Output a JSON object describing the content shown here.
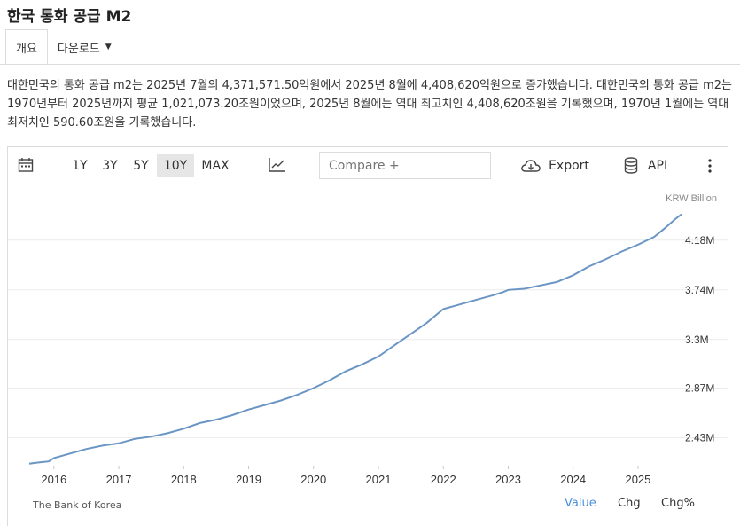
{
  "page": {
    "title": "한국 통화 공급 M2"
  },
  "tabs": [
    {
      "label": "개요",
      "active": true
    },
    {
      "label": "다운로드",
      "active": false
    }
  ],
  "summary": "대한민국의 통화 공급 m2는 2025년 7월의 4,371,571.50억원에서 2025년 8월에 4,408,620억원으로 증가했습니다. 대한민국의 통화 공급 m2는 1970년부터 2025년까지 평균 1,021,073.20조원이었으며, 2025년 8월에는 역대 최고치인 4,408,620조원을 기록했으며, 1970년 1월에는 역대 최저치인 590.60조원을 기록했습니다.",
  "toolbar": {
    "icons": [
      "calendar-icon",
      "line-chart-icon",
      "cloud-download-icon",
      "database-icon",
      "more-vertical-icon"
    ],
    "ranges": [
      {
        "label": "1Y",
        "selected": false
      },
      {
        "label": "3Y",
        "selected": false
      },
      {
        "label": "5Y",
        "selected": false
      },
      {
        "label": "10Y",
        "selected": true
      },
      {
        "label": "MAX",
        "selected": false
      }
    ],
    "compare_placeholder": "Compare +",
    "export_label": "Export",
    "api_label": "API"
  },
  "chart_data": {
    "type": "line",
    "unit_label": "KRW Billion",
    "x_tick_labels": [
      "2016",
      "2017",
      "2018",
      "2019",
      "2020",
      "2021",
      "2022",
      "2023",
      "2024",
      "2025"
    ],
    "y_tick_labels": [
      "2.43M",
      "2.87M",
      "3.3M",
      "3.74M",
      "4.18M"
    ],
    "y_ticks": [
      2430000,
      2870000,
      3300000,
      3740000,
      4180000
    ],
    "ylim": [
      2190000,
      4430000
    ],
    "xlim": [
      2015.62,
      2025.67
    ],
    "y_axis_position": "right",
    "grid": "horizontal",
    "line_color": "#6a95c4",
    "series": [
      {
        "x": [
          2015.62,
          2015.75,
          2015.92,
          2016.0,
          2016.25,
          2016.5,
          2016.75,
          2017.0,
          2017.25,
          2017.5,
          2017.75,
          2018.0,
          2018.25,
          2018.5,
          2018.75,
          2019.0,
          2019.25,
          2019.5,
          2019.75,
          2020.0,
          2020.25,
          2020.5,
          2020.75,
          2021.0,
          2021.25,
          2021.5,
          2021.75,
          2022.0,
          2022.25,
          2022.5,
          2022.75,
          2022.92,
          2023.0,
          2023.25,
          2023.5,
          2023.75,
          2024.0,
          2024.25,
          2024.5,
          2024.75,
          2025.0,
          2025.25,
          2025.42,
          2025.58,
          2025.67
        ],
        "y": [
          2200000,
          2210000,
          2220000,
          2250000,
          2290000,
          2330000,
          2360000,
          2380000,
          2420000,
          2440000,
          2470000,
          2510000,
          2560000,
          2590000,
          2630000,
          2680000,
          2720000,
          2760000,
          2810000,
          2870000,
          2940000,
          3020000,
          3080000,
          3150000,
          3250000,
          3350000,
          3450000,
          3570000,
          3610000,
          3650000,
          3690000,
          3720000,
          3740000,
          3750000,
          3780000,
          3810000,
          3870000,
          3950000,
          4010000,
          4080000,
          4140000,
          4210000,
          4290000,
          4370000,
          4410000
        ]
      }
    ]
  },
  "footer": {
    "source": "The Bank of Korea",
    "view_tabs": [
      {
        "label": "Value",
        "active": true
      },
      {
        "label": "Chg",
        "active": false
      },
      {
        "label": "Chg%",
        "active": false
      }
    ]
  }
}
